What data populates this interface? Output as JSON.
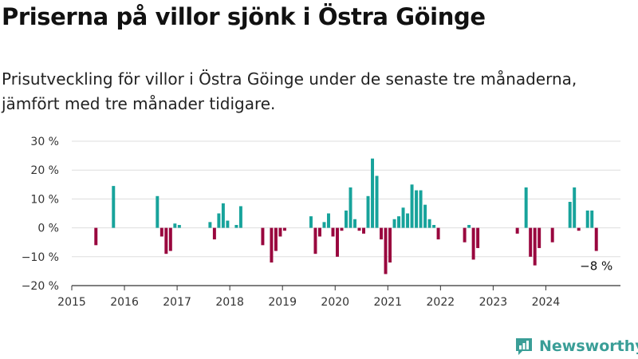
{
  "title": "Priserna på villor sjönk i Östra Göinge",
  "subtitle": "Prisutveckling för villor i Östra Göinge under de senaste tre månaderna, jämfört med tre månader tidigare.",
  "brand": "Newsworthy",
  "colors": {
    "positive": "#17a39b",
    "negative": "#99063e",
    "grid": "#dddddd",
    "brand": "#3a9e97"
  },
  "chart_data": {
    "type": "bar",
    "ylim": [
      -20,
      30
    ],
    "yticks": [
      30,
      20,
      10,
      0,
      -10,
      -20
    ],
    "ytick_labels": [
      "30 %",
      "20 %",
      "10 %",
      "0 %",
      "−10 %",
      "−20 %"
    ],
    "xlim": [
      "2015-01",
      "2025-06"
    ],
    "xticks": [
      "2015-01",
      "2016-01",
      "2017-01",
      "2018-01",
      "2019-01",
      "2020-01",
      "2021-01",
      "2022-01",
      "2023-01",
      "2024-01"
    ],
    "xtick_labels": [
      "2015",
      "2016",
      "2017",
      "2018",
      "2019",
      "2020",
      "2021",
      "2022",
      "2023",
      "2024"
    ],
    "grid": true,
    "annotation": "−8 %",
    "bars": [
      {
        "month": "2015-06",
        "value": -6
      },
      {
        "month": "2015-10",
        "value": 14.5
      },
      {
        "month": "2016-08",
        "value": 11
      },
      {
        "month": "2016-09",
        "value": -3
      },
      {
        "month": "2016-10",
        "value": -9
      },
      {
        "month": "2016-11",
        "value": -8
      },
      {
        "month": "2016-12",
        "value": 1.5
      },
      {
        "month": "2017-01",
        "value": 1
      },
      {
        "month": "2017-08",
        "value": 2
      },
      {
        "month": "2017-09",
        "value": -4
      },
      {
        "month": "2017-10",
        "value": 5
      },
      {
        "month": "2017-11",
        "value": 8.5
      },
      {
        "month": "2017-12",
        "value": 2.5
      },
      {
        "month": "2018-02",
        "value": 1
      },
      {
        "month": "2018-03",
        "value": 7.5
      },
      {
        "month": "2018-08",
        "value": -6
      },
      {
        "month": "2018-10",
        "value": -12
      },
      {
        "month": "2018-11",
        "value": -8
      },
      {
        "month": "2018-12",
        "value": -3
      },
      {
        "month": "2019-01",
        "value": -1
      },
      {
        "month": "2019-07",
        "value": 4
      },
      {
        "month": "2019-08",
        "value": -9
      },
      {
        "month": "2019-09",
        "value": -3
      },
      {
        "month": "2019-10",
        "value": 2
      },
      {
        "month": "2019-11",
        "value": 5
      },
      {
        "month": "2019-12",
        "value": -3
      },
      {
        "month": "2020-01",
        "value": -10
      },
      {
        "month": "2020-02",
        "value": -1
      },
      {
        "month": "2020-03",
        "value": 6
      },
      {
        "month": "2020-04",
        "value": 14
      },
      {
        "month": "2020-05",
        "value": 3
      },
      {
        "month": "2020-06",
        "value": -1
      },
      {
        "month": "2020-07",
        "value": -2
      },
      {
        "month": "2020-08",
        "value": 11
      },
      {
        "month": "2020-09",
        "value": 24
      },
      {
        "month": "2020-10",
        "value": 18
      },
      {
        "month": "2020-11",
        "value": -4
      },
      {
        "month": "2020-12",
        "value": -16
      },
      {
        "month": "2021-01",
        "value": -12
      },
      {
        "month": "2021-02",
        "value": 3
      },
      {
        "month": "2021-03",
        "value": 4
      },
      {
        "month": "2021-04",
        "value": 7
      },
      {
        "month": "2021-05",
        "value": 5
      },
      {
        "month": "2021-06",
        "value": 15
      },
      {
        "month": "2021-07",
        "value": 13
      },
      {
        "month": "2021-08",
        "value": 13
      },
      {
        "month": "2021-09",
        "value": 8
      },
      {
        "month": "2021-10",
        "value": 3
      },
      {
        "month": "2021-11",
        "value": 1
      },
      {
        "month": "2021-12",
        "value": -4
      },
      {
        "month": "2022-06",
        "value": -5
      },
      {
        "month": "2022-07",
        "value": 1
      },
      {
        "month": "2022-08",
        "value": -11
      },
      {
        "month": "2022-09",
        "value": -7
      },
      {
        "month": "2023-06",
        "value": -2
      },
      {
        "month": "2023-08",
        "value": 14
      },
      {
        "month": "2023-09",
        "value": -10
      },
      {
        "month": "2023-10",
        "value": -13
      },
      {
        "month": "2023-11",
        "value": -7
      },
      {
        "month": "2024-02",
        "value": -5
      },
      {
        "month": "2024-06",
        "value": 9
      },
      {
        "month": "2024-07",
        "value": 14
      },
      {
        "month": "2024-08",
        "value": -1
      },
      {
        "month": "2024-10",
        "value": 6
      },
      {
        "month": "2024-11",
        "value": 6
      },
      {
        "month": "2024-12",
        "value": -8
      }
    ]
  }
}
